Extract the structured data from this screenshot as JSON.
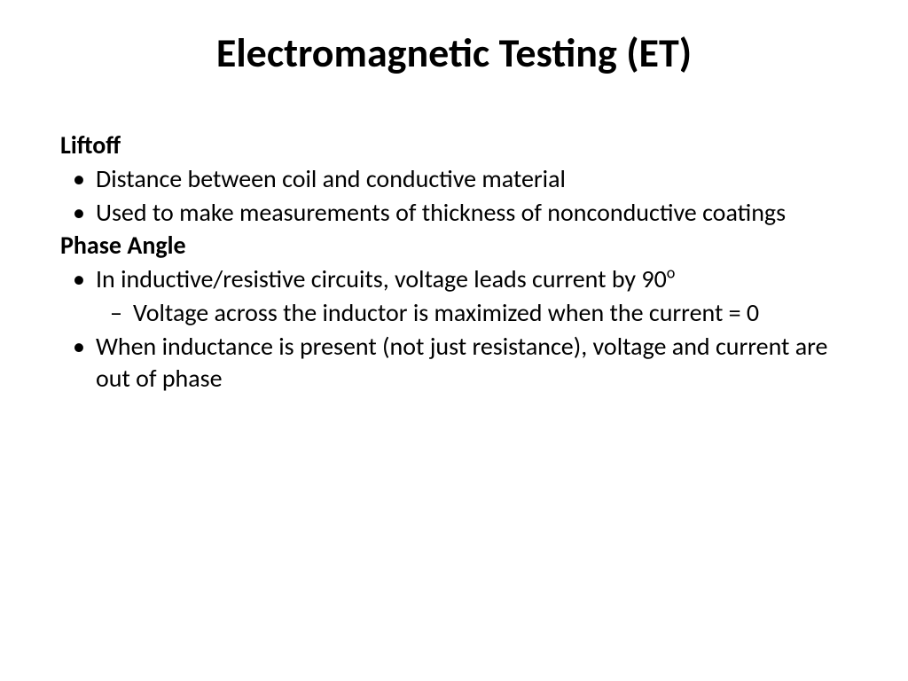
{
  "slide": {
    "title": "Electromagnetic Testing (ET)",
    "title_fontsize": 46,
    "title_fontweight": 700,
    "title_color": "#000000",
    "body_fontsize": 28,
    "body_color": "#000000",
    "line_height": 1.28,
    "background_color": "#ffffff",
    "sections": [
      {
        "heading": "Liftoff",
        "bullets": [
          {
            "text": "Distance between coil and conductive material"
          },
          {
            "text": "Used to make measurements of thickness of nonconductive coatings"
          }
        ]
      },
      {
        "heading": "Phase Angle",
        "bullets": [
          {
            "text_pre": "In inductive/resistive circuits, voltage leads current by 90",
            "sup": "o",
            "sub_bullets": [
              {
                "text": "Voltage across the inductor is maximized when the current = 0"
              }
            ]
          },
          {
            "text": "When inductance is present (not just resistance), voltage and current are out of phase"
          }
        ]
      }
    ]
  }
}
